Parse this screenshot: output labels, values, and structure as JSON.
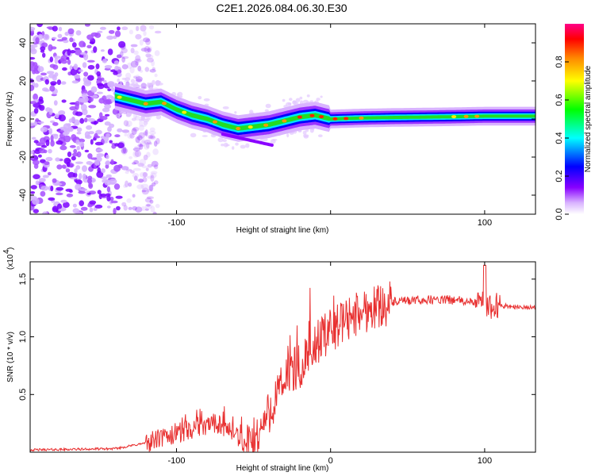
{
  "page_title": "C2E1.2026.084.06.30.E30",
  "chart_data": [
    {
      "type": "heatmap",
      "title": "C2E1.2026.084.06.30.E30",
      "xlabel": "Height of straight line (km)",
      "ylabel": "Frequency (Hz)",
      "xlim": [
        -195,
        133
      ],
      "ylim": [
        -50,
        50
      ],
      "xticks": [
        -100,
        0,
        100
      ],
      "xtick_labels": [
        "-100",
        "",
        "100"
      ],
      "yticks": [
        -40,
        -20,
        0,
        20,
        40
      ],
      "ytick_labels": [
        "-40",
        "-20",
        "0",
        "20",
        "40"
      ],
      "colorbar": {
        "label": "Normalized spectral amplitude",
        "range": [
          0,
          1
        ],
        "ticks": [
          0.0,
          0.2,
          0.4,
          0.6,
          0.8
        ],
        "tick_labels": [
          "0.0",
          "0.2",
          "0.4",
          "0.6",
          "0.8"
        ],
        "colors": [
          "#ffffff",
          "#d9b3ff",
          "#8800ff",
          "#0000ff",
          "#00ffff",
          "#00ff00",
          "#ffff00",
          "#ff8800",
          "#ff0000",
          "#ff0088"
        ]
      },
      "ridge": {
        "x": [
          -140,
          -130,
          -120,
          -110,
          -100,
          -90,
          -80,
          -70,
          -60,
          -50,
          -40,
          -30,
          -20,
          -10,
          0,
          20,
          40,
          60,
          80,
          100,
          133
        ],
        "y": [
          12,
          10,
          8,
          9,
          5,
          2,
          0,
          -3,
          -5,
          -4,
          -3,
          -1,
          1,
          2,
          0,
          0.5,
          0.8,
          1,
          1.2,
          1.5,
          1.5
        ]
      },
      "noise_region_x": [
        -195,
        -120
      ]
    },
    {
      "type": "line",
      "title": "",
      "xlabel": "Height of straight line (km)",
      "ylabel": "SNR (10 * v/v)",
      "scale_label": "(x10",
      "scale_exponent": "4",
      "xlim": [
        -195,
        133
      ],
      "ylim": [
        0,
        1.65
      ],
      "xticks": [
        -100,
        0,
        100
      ],
      "xtick_labels": [
        "-100",
        "0",
        "100"
      ],
      "yticks": [
        0.5,
        1.0,
        1.5
      ],
      "ytick_labels": [
        "0.5",
        "1.0",
        "1.5"
      ],
      "color": "#e83030",
      "envelope": {
        "x": [
          -195,
          -140,
          -120,
          -110,
          -100,
          -90,
          -80,
          -75,
          -70,
          -60,
          -55,
          -50,
          -45,
          -40,
          -35,
          -30,
          -25,
          -20,
          -15,
          -10,
          -5,
          0,
          10,
          20,
          30,
          40,
          50,
          60,
          70,
          80,
          90,
          100,
          105,
          110,
          120,
          133
        ],
        "y": [
          0.02,
          0.03,
          0.08,
          0.12,
          0.15,
          0.2,
          0.22,
          0.25,
          0.22,
          0.12,
          0.06,
          0.1,
          0.2,
          0.35,
          0.48,
          0.6,
          0.7,
          0.75,
          0.85,
          0.95,
          1.0,
          1.05,
          1.15,
          1.22,
          1.27,
          1.3,
          1.31,
          1.32,
          1.32,
          1.32,
          1.3,
          1.28,
          1.27,
          1.27,
          1.26,
          1.25
        ]
      }
    }
  ]
}
